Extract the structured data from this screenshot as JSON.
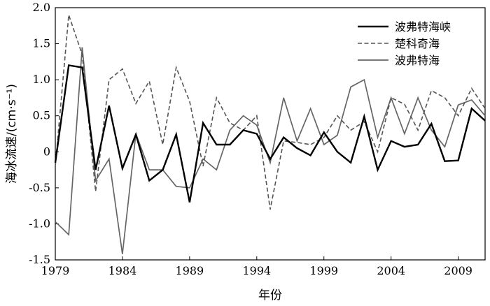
{
  "chart_data": {
    "type": "line",
    "xlabel": "年份",
    "ylabel": "海冰流速/(cm·s⁻¹)",
    "xlim": [
      1979,
      2011
    ],
    "ylim": [
      -1.5,
      2.0
    ],
    "x_ticks": [
      1979,
      1984,
      1989,
      1994,
      1999,
      2004,
      2009
    ],
    "y_ticks": [
      2.0,
      1.5,
      1.0,
      0.5,
      0,
      -0.5,
      -1.0,
      -1.5
    ],
    "y_tick_labels": [
      "2.0",
      "1.5",
      "1.0",
      "0.5",
      "0",
      "-0.5",
      "-1.0",
      "-1.5"
    ],
    "legend_position": "top-right",
    "x": [
      1979,
      1980,
      1981,
      1982,
      1983,
      1984,
      1985,
      1986,
      1987,
      1988,
      1989,
      1990,
      1991,
      1992,
      1993,
      1994,
      1995,
      1996,
      1997,
      1998,
      1999,
      2000,
      2001,
      2002,
      2003,
      2004,
      2005,
      2006,
      2007,
      2008,
      2009,
      2010,
      2011
    ],
    "series": [
      {
        "name": "波弗特海峡",
        "style": "solid-thick",
        "color": "#000000",
        "values": [
          -0.15,
          1.2,
          1.17,
          -0.25,
          0.64,
          -0.23,
          0.24,
          -0.4,
          -0.25,
          0.24,
          -0.7,
          0.4,
          0.1,
          0.1,
          0.3,
          0.25,
          -0.1,
          0.2,
          0.05,
          -0.05,
          0.27,
          0.0,
          -0.15,
          0.49,
          -0.25,
          0.15,
          0.07,
          0.1,
          0.39,
          -0.13,
          -0.12,
          0.6,
          0.43
        ]
      },
      {
        "name": "楚科奇海",
        "style": "dashed",
        "color": "#555555",
        "values": [
          -0.2,
          1.9,
          1.35,
          -0.55,
          1.0,
          1.15,
          0.67,
          0.98,
          0.1,
          1.17,
          0.7,
          -0.2,
          0.75,
          0.4,
          0.3,
          0.5,
          -0.8,
          0.15,
          0.13,
          0.1,
          0.2,
          0.5,
          0.3,
          0.42,
          0.0,
          0.75,
          0.66,
          0.3,
          0.85,
          0.75,
          0.5,
          0.88,
          0.6
        ]
      },
      {
        "name": "波弗特海",
        "style": "solid-thin",
        "color": "#666666",
        "values": [
          -0.97,
          -1.15,
          1.45,
          -0.4,
          -0.1,
          -1.42,
          0.25,
          -0.25,
          -0.25,
          -0.48,
          -0.5,
          -0.1,
          -0.25,
          0.3,
          0.5,
          0.37,
          -0.15,
          0.75,
          0.15,
          0.6,
          0.1,
          0.23,
          0.9,
          1.0,
          0.2,
          0.75,
          0.25,
          0.75,
          0.3,
          0.07,
          0.65,
          0.72,
          0.5
        ]
      }
    ]
  }
}
